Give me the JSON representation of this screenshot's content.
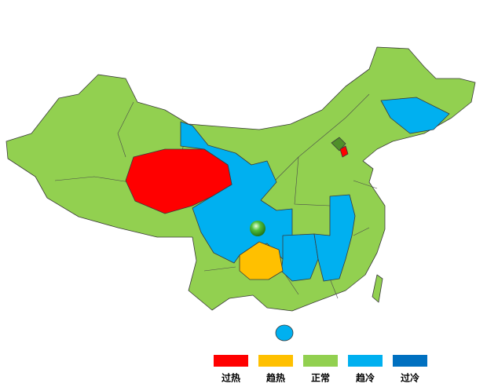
{
  "legend": {
    "items": [
      {
        "label": "过热",
        "color": "#ff0000"
      },
      {
        "label": "趋热",
        "color": "#ffc000"
      },
      {
        "label": "正常",
        "color": "#92d050"
      },
      {
        "label": "趋冷",
        "color": "#00b0f0"
      },
      {
        "label": "过冷",
        "color": "#0070c0"
      }
    ]
  }
}
